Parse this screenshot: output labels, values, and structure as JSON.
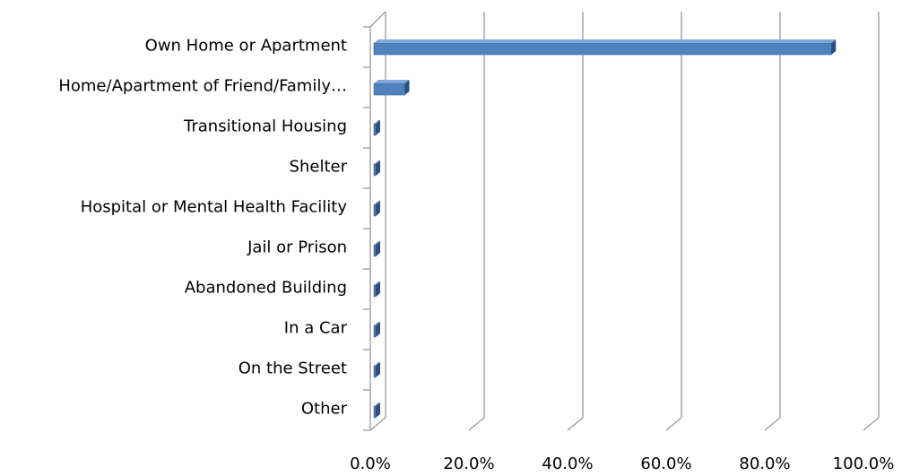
{
  "chart_data": {
    "type": "bar3d_horizontal",
    "categories": [
      "Own Home or Apartment",
      "Home/Apartment of Friend/Family…",
      "Transitional Housing",
      "Shelter",
      "Hospital or Mental Health Facility",
      "Jail or Prison",
      "Abandoned Building",
      "In a Car",
      "On the Street",
      "Other"
    ],
    "values": [
      93.5,
      7,
      0.3,
      0.3,
      0.3,
      0.3,
      0.3,
      0.3,
      0.3,
      0.3
    ],
    "color": "#4f81bd",
    "xlim": [
      0,
      100
    ],
    "xticks": [
      {
        "value": 0,
        "label": "0.0%"
      },
      {
        "value": 20,
        "label": "20.0%"
      },
      {
        "value": 40,
        "label": "40.0%"
      },
      {
        "value": 60,
        "label": "60.0%"
      },
      {
        "value": 80,
        "label": "80.0%"
      },
      {
        "value": 100,
        "label": "100.0%"
      }
    ],
    "grid": true
  }
}
